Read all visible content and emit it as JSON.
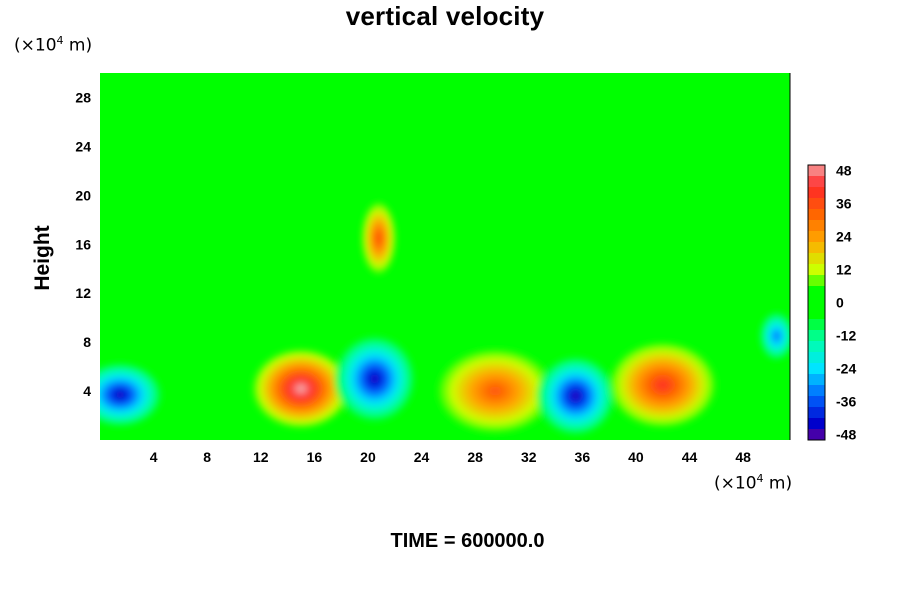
{
  "chart_data": {
    "type": "heatmap",
    "title": "vertical velocity",
    "ylabel": "Height",
    "y_unit": "(×10⁴ m)",
    "x_unit": "(×10⁴ m)",
    "xlim": [
      0,
      51.5
    ],
    "ylim": [
      0,
      30
    ],
    "x_ticks": [
      4,
      8,
      12,
      16,
      20,
      24,
      28,
      32,
      36,
      40,
      44,
      48
    ],
    "y_ticks": [
      4,
      8,
      12,
      16,
      20,
      24,
      28
    ],
    "colorbar": {
      "ticks": [
        48,
        36,
        24,
        12,
        0,
        -12,
        -24,
        -36,
        -48
      ],
      "min": -50,
      "max": 50
    },
    "features": [
      {
        "x": 1.5,
        "y": 3.7,
        "value": -45
      },
      {
        "x": 15,
        "y": 4.2,
        "value": 50
      },
      {
        "x": 20.5,
        "y": 5,
        "value": -45
      },
      {
        "x": 29.5,
        "y": 4,
        "value": 34
      },
      {
        "x": 35.5,
        "y": 3.6,
        "value": -46
      },
      {
        "x": 42,
        "y": 4.5,
        "value": 40
      },
      {
        "x": 50.5,
        "y": 8.5,
        "value": -34
      },
      {
        "x": 20.8,
        "y": 16.5,
        "value": 36
      }
    ],
    "footer": "TIME = 600000.0"
  }
}
